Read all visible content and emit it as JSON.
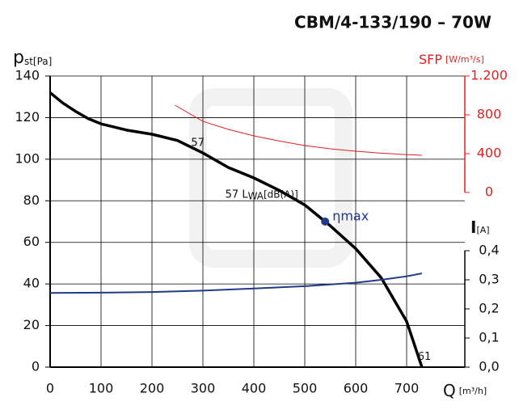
{
  "chart_data": {
    "type": "line",
    "title": "CBM/4-133/190 – 70W",
    "x_label": {
      "main": "Q",
      "sub": "[m³/h]"
    },
    "y_label": {
      "main": "p",
      "sub": "st[Pa]"
    },
    "y2_label": {
      "main": "SFP",
      "sub": "[W/m³/s]"
    },
    "y3_label": {
      "main": "I",
      "sub": "[A]"
    },
    "xlim": [
      0,
      800
    ],
    "xticks": [
      0,
      100,
      200,
      300,
      400,
      500,
      600,
      700
    ],
    "ylim": [
      0,
      140
    ],
    "yticks": [
      0,
      20,
      40,
      60,
      80,
      100,
      120,
      140
    ],
    "y2lim": [
      -1800,
      1200
    ],
    "y2ticks": [
      0,
      400,
      800,
      {
        "value": 1200,
        "label": "1.200"
      }
    ],
    "y3lim": [
      0,
      1.0
    ],
    "y3ticks": [
      {
        "value": 0,
        "label": "0,0"
      },
      {
        "value": 0.1,
        "label": "0,1"
      },
      {
        "value": 0.2,
        "label": "0,2"
      },
      {
        "value": 0.3,
        "label": "0,3"
      },
      {
        "value": 0.4,
        "label": "0,4"
      }
    ],
    "grid": true,
    "series": [
      {
        "name": "p_st",
        "color": "#000000",
        "axis": "y",
        "x": [
          0,
          25,
          50,
          75,
          100,
          150,
          200,
          250,
          300,
          350,
          400,
          450,
          500,
          550,
          600,
          650,
          700,
          730
        ],
        "values": [
          132,
          127,
          123,
          119.5,
          117,
          114,
          112,
          109,
          103,
          96,
          91,
          85,
          78,
          68,
          57,
          43,
          22,
          0
        ]
      },
      {
        "name": "SFP",
        "color": "#e02020",
        "axis": "y2",
        "x": [
          245,
          300,
          350,
          400,
          450,
          500,
          550,
          600,
          650,
          700,
          730
        ],
        "values": [
          900,
          733,
          650,
          583,
          530,
          483,
          450,
          425,
          405,
          390,
          383
        ]
      },
      {
        "name": "I",
        "color": "#1f3a8a",
        "axis": "y3",
        "x": [
          0,
          100,
          200,
          300,
          400,
          500,
          600,
          650,
          700,
          730
        ],
        "values": [
          0.255,
          0.256,
          0.258,
          0.263,
          0.27,
          0.278,
          0.29,
          0.3,
          0.312,
          0.322
        ]
      }
    ],
    "eta_max": {
      "label": "ηmax",
      "x": 540,
      "y": 70
    },
    "annotations": [
      {
        "text": "57",
        "x": 290,
        "y": 108
      },
      {
        "text": "57 L",
        "sub": "WA",
        "rest": "[dB(A)]",
        "x": 487,
        "y": 83
      },
      {
        "text": "61",
        "x": 735,
        "y": 5
      }
    ]
  }
}
